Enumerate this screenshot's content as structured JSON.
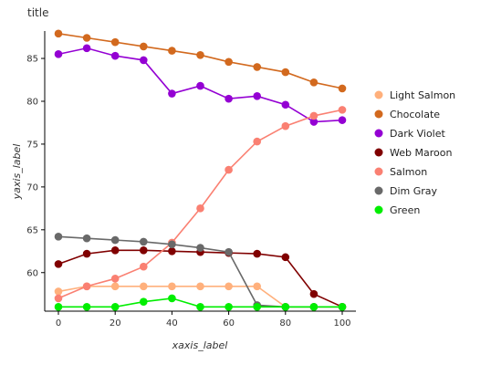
{
  "chart_data": {
    "type": "line",
    "title": "title",
    "xlabel": "xaxis_label",
    "ylabel": "yaxis_label",
    "xlim": [
      0,
      100
    ],
    "ylim": [
      55.5,
      88.2
    ],
    "x_ticks": [
      0,
      20,
      40,
      60,
      80,
      100
    ],
    "y_ticks": [
      60,
      65,
      70,
      75,
      80,
      85
    ],
    "grid": false,
    "legend_position": "right",
    "x": [
      0,
      10,
      20,
      30,
      40,
      50,
      60,
      70,
      80,
      90,
      100
    ],
    "series": [
      {
        "name": "Light Salmon",
        "color": "#ffb07c",
        "values": [
          57.8,
          58.4,
          58.4,
          58.4,
          58.4,
          58.4,
          58.4,
          58.4,
          56.0,
          56.0,
          56.0
        ]
      },
      {
        "name": "Chocolate",
        "color": "#d2691e",
        "values": [
          87.9,
          87.4,
          86.9,
          86.4,
          85.9,
          85.4,
          84.6,
          84.0,
          83.4,
          82.2,
          81.5
        ]
      },
      {
        "name": "Dark Violet",
        "color": "#9400d3",
        "values": [
          85.5,
          86.2,
          85.3,
          84.8,
          80.9,
          81.8,
          80.3,
          80.6,
          79.6,
          77.6,
          77.8
        ]
      },
      {
        "name": "Web Maroon",
        "color": "#800000",
        "values": [
          61.0,
          62.2,
          62.6,
          62.6,
          62.5,
          62.4,
          62.3,
          62.2,
          61.8,
          57.5,
          56.0
        ]
      },
      {
        "name": "Salmon",
        "color": "#fa8072",
        "values": [
          57.0,
          58.4,
          59.3,
          60.7,
          63.5,
          67.5,
          72.0,
          75.3,
          77.1,
          78.3,
          79.0
        ]
      },
      {
        "name": "Dim Gray",
        "color": "#696969",
        "values": [
          64.2,
          64.0,
          63.8,
          63.6,
          63.3,
          62.9,
          62.4,
          56.2,
          56.0,
          56.0,
          56.0
        ]
      },
      {
        "name": "Green",
        "color": "#00ee00",
        "values": [
          56.0,
          56.0,
          56.0,
          56.6,
          57.0,
          56.0,
          56.0,
          56.0,
          56.0,
          56.0,
          56.0
        ]
      }
    ]
  }
}
